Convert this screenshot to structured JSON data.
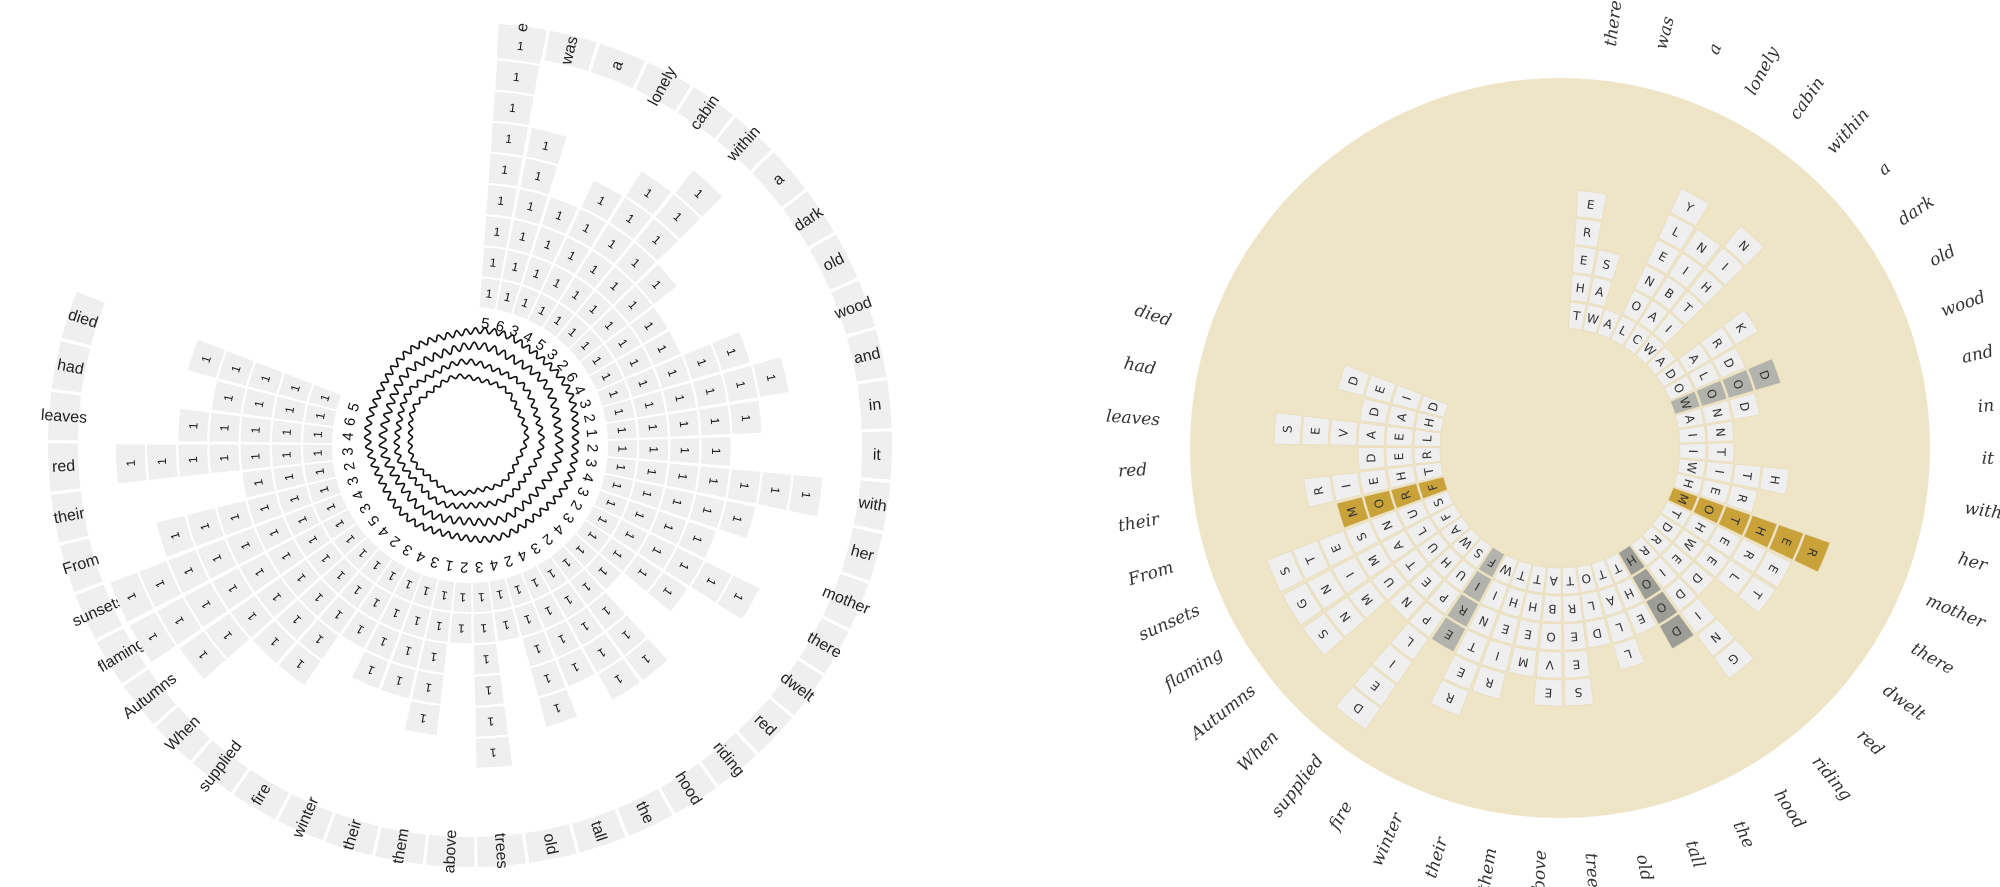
{
  "panels": {
    "left": {
      "name": "left-radial-count-diagram"
    },
    "right": {
      "name": "right-radial-letter-diagram"
    }
  },
  "poem_words": [
    "there",
    "was",
    "a",
    "lonely",
    "cabin",
    "within",
    "a",
    "dark",
    "old",
    "wood",
    "and",
    "in",
    "it",
    "with",
    "her",
    "mother",
    "there",
    "dwelt",
    "red",
    "riding",
    "hood",
    "the",
    "tall",
    "old",
    "trees",
    "above",
    "them",
    "their",
    "winter",
    "fire",
    "supplied",
    "When",
    "Autumns",
    "flaming",
    "sunsets",
    "From",
    "their",
    "red",
    "leaves",
    "had",
    "died"
  ],
  "left_word_bar_counts": [
    9,
    6,
    4,
    5,
    6,
    7,
    4,
    3,
    3,
    5,
    6,
    5,
    4,
    7,
    5,
    4,
    6,
    4,
    2,
    5,
    5,
    4,
    5,
    2,
    6,
    2,
    5,
    4,
    4,
    3,
    5,
    5,
    7,
    8,
    8,
    6,
    3,
    7,
    5,
    4,
    5
  ],
  "right_words_upper": [
    "THERE",
    "WAS",
    "A",
    "LONELY",
    "CABIN",
    "WITHIN",
    "A",
    "DARK",
    "OLD",
    "WOOD",
    "AND",
    "IN",
    "IT",
    "WITH",
    "HER",
    "MOTHER",
    "THERE",
    "DWELT",
    "RED",
    "RIDING",
    "HOOD",
    "THE",
    "TALL",
    "OLD",
    "TREES",
    "ABOVE",
    "THEM",
    "THEIR",
    "WINTER",
    "FIRE",
    "SUPPLIED",
    "WHEN",
    "AUTUMNS",
    "FLAMING",
    "SUNSETS",
    "FROM",
    "THEIR",
    "RED",
    "LEAVES",
    "HAD",
    "DIED"
  ],
  "highlights": {
    "FROM": "#c9a23a",
    "MOTHER": "#c9a23a",
    "WOOD": "#b3b3ad",
    "FIRE": "#b3b3ad",
    "HOOD": "#9d9d98"
  },
  "colors": {
    "cell": "#efefef",
    "disk": "#eee4c6",
    "gold": "#c9a23a",
    "grey": "#b3b3ad",
    "dark_grey": "#9d9d98"
  },
  "inner_ring_digits": [
    "5",
    "6",
    "3",
    "4",
    "5",
    "3",
    "2",
    "6",
    "4",
    "3",
    "2",
    "1",
    "2",
    "3",
    "4",
    "3",
    "2",
    "3",
    "4",
    "2",
    "3",
    "4",
    "2",
    "4",
    "3",
    "2",
    "1",
    "3",
    "4",
    "3",
    "2",
    "4",
    "5",
    "3",
    "4",
    "3",
    "2",
    "3",
    "4",
    "6",
    "5"
  ]
}
